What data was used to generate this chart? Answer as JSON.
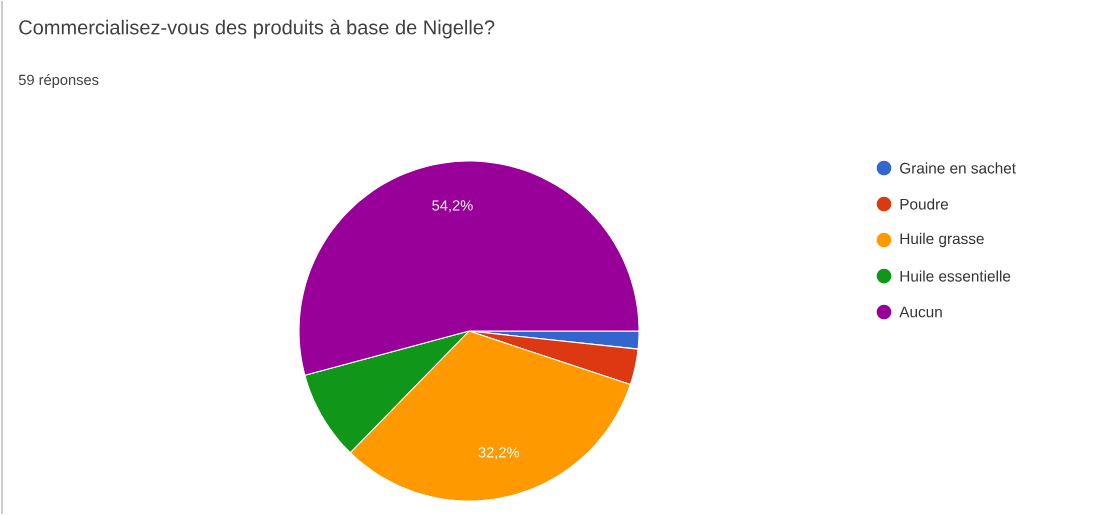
{
  "chart_data": {
    "type": "pie",
    "title": "Commercialisez-vous des produits à base de Nigelle?",
    "subtitle": "59 réponses",
    "categories": [
      "Graine en sachet",
      "Poudre",
      "Huile grasse",
      "Huile essentielle",
      "Aucun"
    ],
    "values": [
      1.7,
      3.4,
      32.2,
      8.5,
      54.2
    ],
    "colors": [
      "#3366cc",
      "#dc3912",
      "#ff9900",
      "#109618",
      "#990099"
    ],
    "value_labels": [
      null,
      null,
      "32,2%",
      null,
      "54,2%"
    ],
    "legend": "right"
  }
}
